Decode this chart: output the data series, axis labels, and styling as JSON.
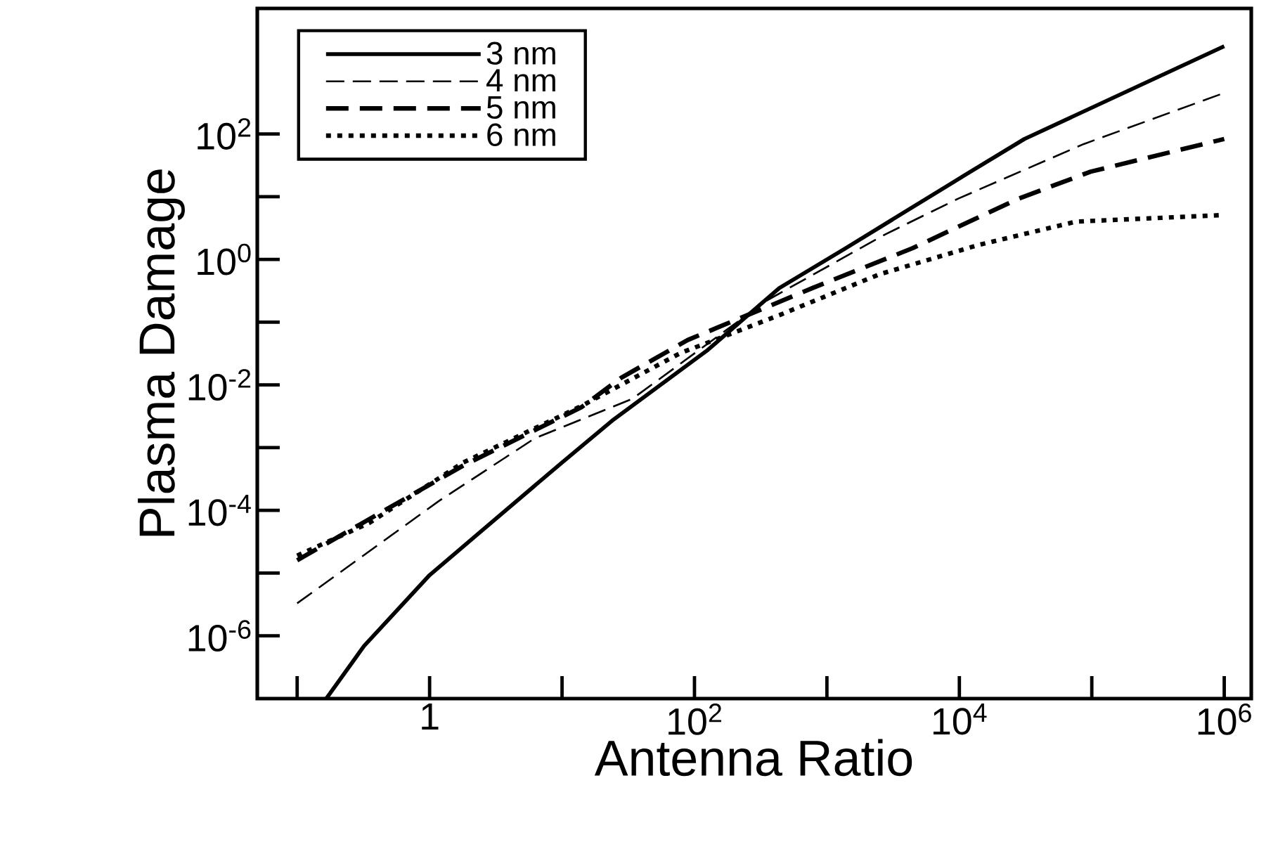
{
  "chart_data": {
    "type": "line",
    "xlabel": "Antenna Ratio",
    "ylabel": "Plasma Damage",
    "log": "xy",
    "xlim": [
      0.05,
      1600000.0
    ],
    "ylim": [
      1e-07,
      10000.0
    ],
    "xticks": [
      {
        "value": 0.1,
        "label": null
      },
      1,
      {
        "value": 10,
        "label": null
      },
      {
        "value": 100,
        "label": "10$^{2}$"
      },
      {
        "value": 1000,
        "label": null
      },
      {
        "value": 10000,
        "label": "10$^{4}$"
      },
      {
        "value": 100000,
        "label": null
      },
      {
        "value": 1000000,
        "label": "10$^{6}$"
      }
    ],
    "yticks": [
      {
        "value": 1e-06,
        "label": "10$^{-6}$"
      },
      {
        "value": 1e-05,
        "label": null
      },
      {
        "value": 0.0001,
        "label": "10$^{-4}$"
      },
      {
        "value": 0.001,
        "label": null
      },
      {
        "value": 0.01,
        "label": "10$^{-2}$"
      },
      {
        "value": 0.1,
        "label": null
      },
      {
        "value": 1,
        "label": "10$^{0}$"
      },
      {
        "value": 10,
        "label": null
      },
      {
        "value": 100,
        "label": "10$^{2}$"
      }
    ],
    "grid": false,
    "legend": "top left",
    "marker": "none",
    "series": [
      {
        "name": "3 nm",
        "color": "#000000",
        "line_style": "solid",
        "x": [
          0.166,
          0.32,
          1,
          10,
          24.5,
          126,
          437,
          1380,
          11000,
          31000,
          1000000
        ],
        "values": [
          1e-07,
          6.9e-07,
          9.3e-06,
          0.00058,
          0.0028,
          0.036,
          0.35,
          1.5,
          22,
          83,
          2500
        ]
      },
      {
        "name": "4 nm",
        "color": "#000000",
        "line_style": "dashed",
        "x": [
          0.1,
          1.17,
          6.2,
          34,
          350,
          2750,
          9800,
          87000,
          1000000
        ],
        "values": [
          3.3e-06,
          0.00014,
          0.0014,
          0.006,
          0.22,
          2.5,
          9.3,
          69,
          450
        ]
      },
      {
        "name": "5 nm",
        "color": "#000000",
        "line_style": "dashed",
        "x": [
          0.1,
          1.8,
          14,
          28,
          89,
          780,
          4400,
          28000,
          98000,
          1000000
        ],
        "values": [
          1.6e-05,
          0.00052,
          0.0044,
          0.013,
          0.052,
          0.35,
          1.5,
          9.3,
          25,
          83
        ]
      },
      {
        "name": "6 nm",
        "color": "#000000",
        "line_style": "dotted",
        "x": [
          0.1,
          0.35,
          1.8,
          14,
          78,
          440,
          2500,
          14000,
          76000,
          1000000
        ],
        "values": [
          1.9e-05,
          6.3e-05,
          0.00058,
          0.0046,
          0.032,
          0.13,
          0.58,
          1.7,
          4.0,
          5.1
        ]
      }
    ]
  }
}
